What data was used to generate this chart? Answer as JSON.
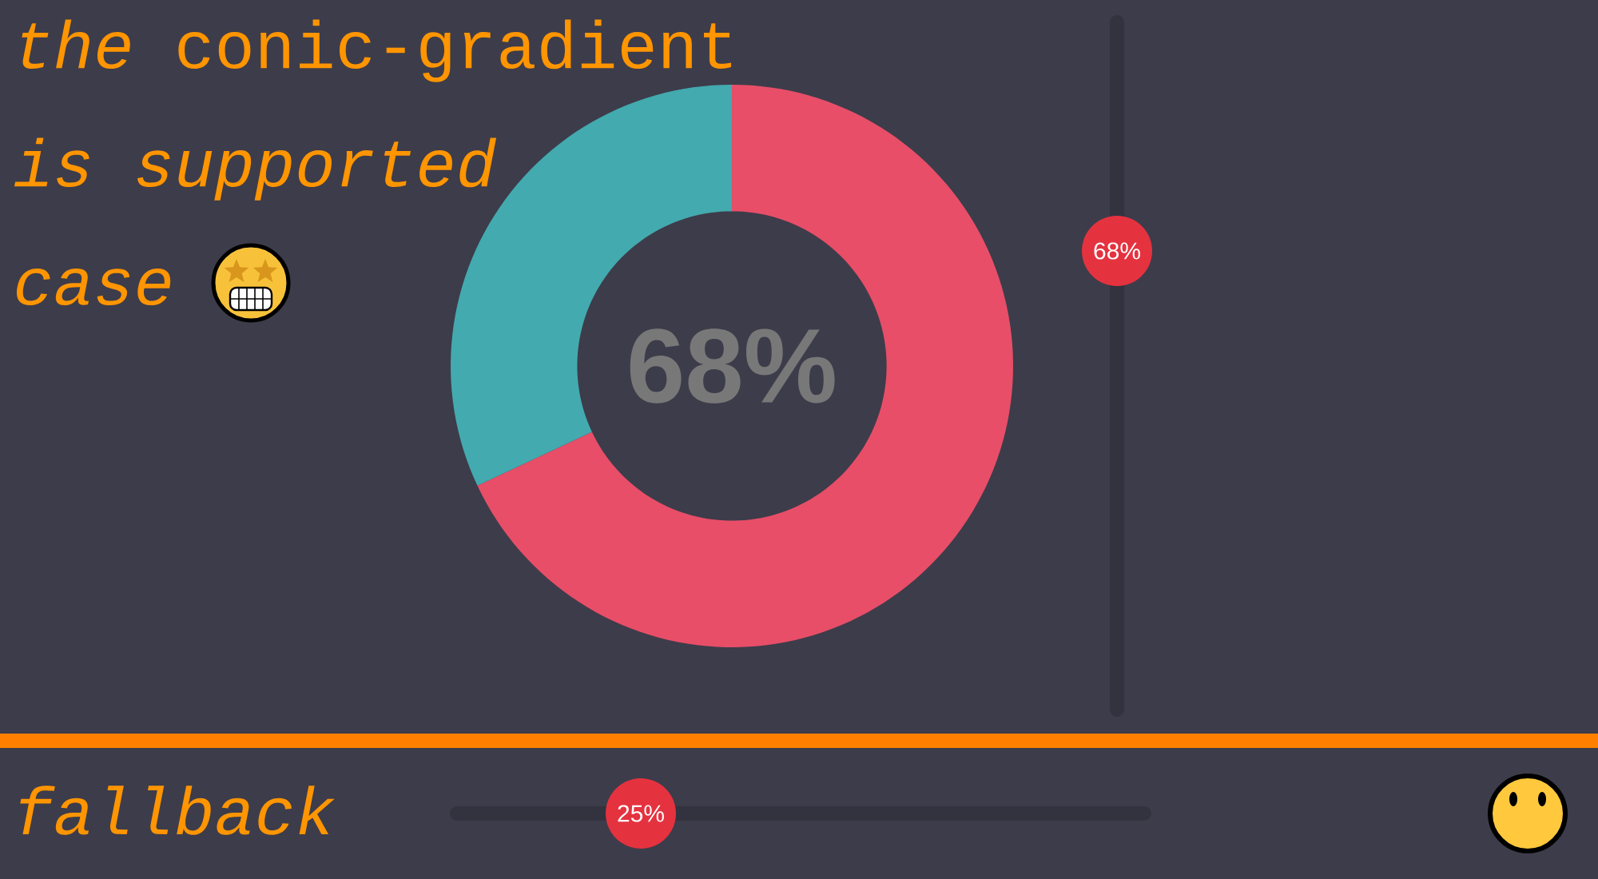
{
  "chart_data": {
    "type": "donut",
    "title": "*the* conic-gradient *is supported case*",
    "categories": [
      null,
      null
    ],
    "values": [
      68,
      32
    ],
    "colors": [
      "#e84e68",
      "#43aaaf"
    ],
    "annotations": [
      "68%",
      "68%",
      "fallback",
      "25%"
    ]
  }
}
